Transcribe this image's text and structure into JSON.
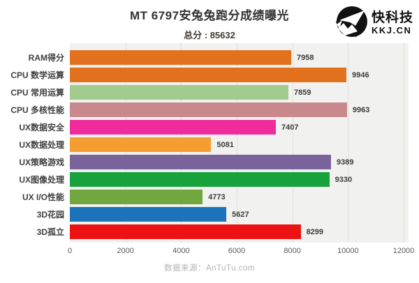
{
  "header": {
    "title": "MT 6797安兔兔跑分成绩曝光",
    "subtitle": "总分 : 85632",
    "logo": {
      "brand": "快科技",
      "domain": "KKJ.CN",
      "icon": "paper-plane-circle-icon"
    }
  },
  "chart_data": {
    "type": "bar",
    "orientation": "horizontal",
    "title": "MT 6797安兔兔跑分成绩曝光",
    "subtitle_total_score": 85632,
    "categories": [
      "RAM得分",
      "CPU 数学运算",
      "CPU 常用运算",
      "CPU 多核性能",
      "UX数据安全",
      "UX数据处理",
      "UX策略游戏",
      "UX图像处理",
      "UX I/O性能",
      "3D花园",
      "3D孤立"
    ],
    "values": [
      7958,
      9946,
      7859,
      9963,
      7407,
      5081,
      9389,
      9330,
      4773,
      5627,
      8299
    ],
    "bar_colors": [
      "#e2711e",
      "#e2711e",
      "#a2cc8e",
      "#c9898c",
      "#f02b9c",
      "#f59d30",
      "#7a639b",
      "#18a23b",
      "#71a73e",
      "#1c73b9",
      "#ee1111"
    ],
    "xlim": [
      0,
      12000
    ],
    "x_ticks": [
      0,
      2000,
      4000,
      6000,
      8000,
      10000,
      12000
    ],
    "grid": "vertical-dotted",
    "legend": "none",
    "plot_background": "#f1f1ef",
    "data_labels": "end-of-bar"
  },
  "footer": {
    "source": "数据来源：AnTuTu.com"
  }
}
